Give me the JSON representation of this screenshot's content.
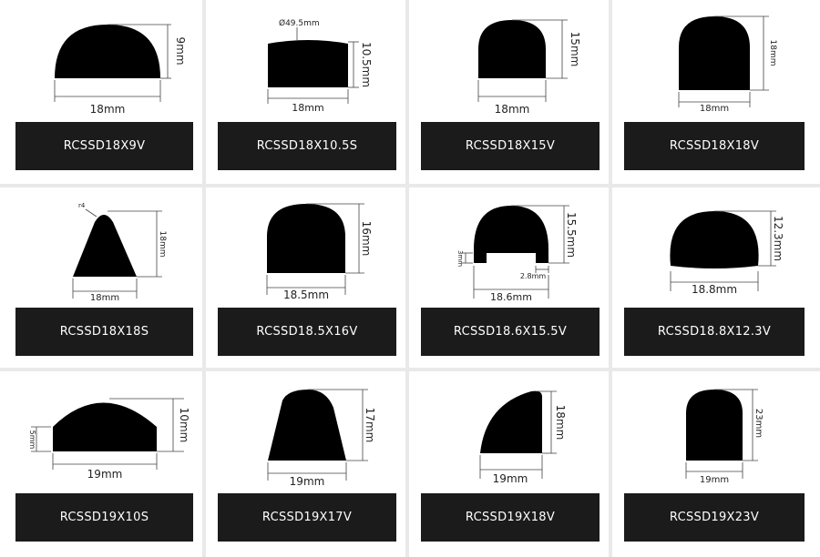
{
  "colors": {
    "background": "#e9e9e9",
    "card": "#ffffff",
    "label_bg": "#1b1b1b",
    "label_text": "#ffffff",
    "shape": "#000000"
  },
  "profiles": [
    {
      "code": "RCSSD18X9V",
      "dims": {
        "width": "18mm",
        "height": "9mm"
      }
    },
    {
      "code": "RCSSD18X10.5S",
      "dims": {
        "width": "18mm",
        "height": "10.5mm",
        "note": "Ø49.5mm"
      }
    },
    {
      "code": "RCSSD18X15V",
      "dims": {
        "width": "18mm",
        "height": "15mm"
      }
    },
    {
      "code": "RCSSD18X18V",
      "dims": {
        "width": "18mm",
        "height": "18mm"
      }
    },
    {
      "code": "RCSSD18X18S",
      "dims": {
        "width": "18mm",
        "height": "18mm",
        "note": "r4"
      }
    },
    {
      "code": "RCSSD18.5X16V",
      "dims": {
        "width": "18.5mm",
        "height": "16mm"
      }
    },
    {
      "code": "RCSSD18.6X15.5V",
      "dims": {
        "width": "18.6mm",
        "height": "15.5mm",
        "extra1": "3mm",
        "extra2": "2.8mm"
      }
    },
    {
      "code": "RCSSD18.8X12.3V",
      "dims": {
        "width": "18.8mm",
        "height": "12.3mm"
      }
    },
    {
      "code": "RCSSD19X10S",
      "dims": {
        "width": "19mm",
        "height": "10mm",
        "extra1": "5mm"
      }
    },
    {
      "code": "RCSSD19X17V",
      "dims": {
        "width": "19mm",
        "height": "17mm"
      }
    },
    {
      "code": "RCSSD19X18V",
      "dims": {
        "width": "19mm",
        "height": "18mm"
      }
    },
    {
      "code": "RCSSD19X23V",
      "dims": {
        "width": "19mm",
        "height": "23mm"
      }
    }
  ]
}
